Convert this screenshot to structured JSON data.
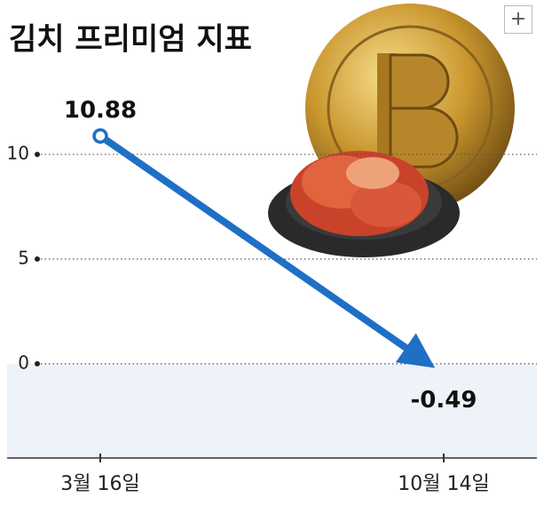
{
  "chart_data": {
    "type": "line",
    "title": "김치 프리미엄 지표",
    "categories": [
      "3월 16일",
      "10월 14일"
    ],
    "values": [
      10.88,
      -0.49
    ],
    "color": "#1f6fc6",
    "ylim": [
      -4.5,
      15
    ],
    "yticks": [
      0,
      5,
      10
    ],
    "grid": true,
    "negative_shade": "#edf3f9"
  },
  "zoom_button": "+"
}
